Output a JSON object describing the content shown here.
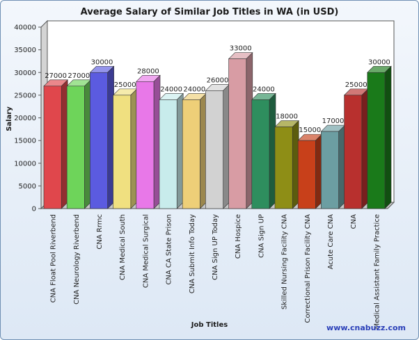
{
  "chart_data": {
    "type": "bar",
    "title": "Average Salary of Similar Job Titles in WA (in USD)",
    "xlabel": "Job Titles",
    "ylabel": "Salary",
    "ylim": [
      0,
      40000
    ],
    "yticks": [
      "0",
      "5000",
      "10000",
      "15000",
      "20000",
      "25000",
      "30000",
      "35000",
      "40000"
    ],
    "grid": false,
    "categories": [
      "CNA Float Pool Riverbend",
      "CNA Neurology Riverbend",
      "CNA Rrmc",
      "CNA Medical South",
      "CNA Medical Surgical",
      "CNA CA State Prison",
      "CNA Submit Info Today",
      "CNA Sign UP Today",
      "CNA Hospice",
      "CNA Sign UP",
      "Skilled Nursing Facility CNA",
      "Correctional Prison Facility CNA",
      "Acute Care CNA",
      "CNA",
      "Medical Assistant Family Practice"
    ],
    "values": [
      27000,
      27000,
      30000,
      25000,
      28000,
      24000,
      24000,
      26000,
      33000,
      24000,
      18000,
      15000,
      17000,
      25000,
      30000
    ],
    "colors": [
      "#e0474c",
      "#6ed45a",
      "#5b5be0",
      "#f0e080",
      "#e878e8",
      "#c8ecec",
      "#eecf78",
      "#d2d2d2",
      "#d89ca4",
      "#2e8e5e",
      "#8e8e16",
      "#c8401a",
      "#6c9ea2",
      "#b8302e",
      "#1a7a1a"
    ]
  },
  "footer": {
    "link": "www.cnabuzz.com"
  }
}
